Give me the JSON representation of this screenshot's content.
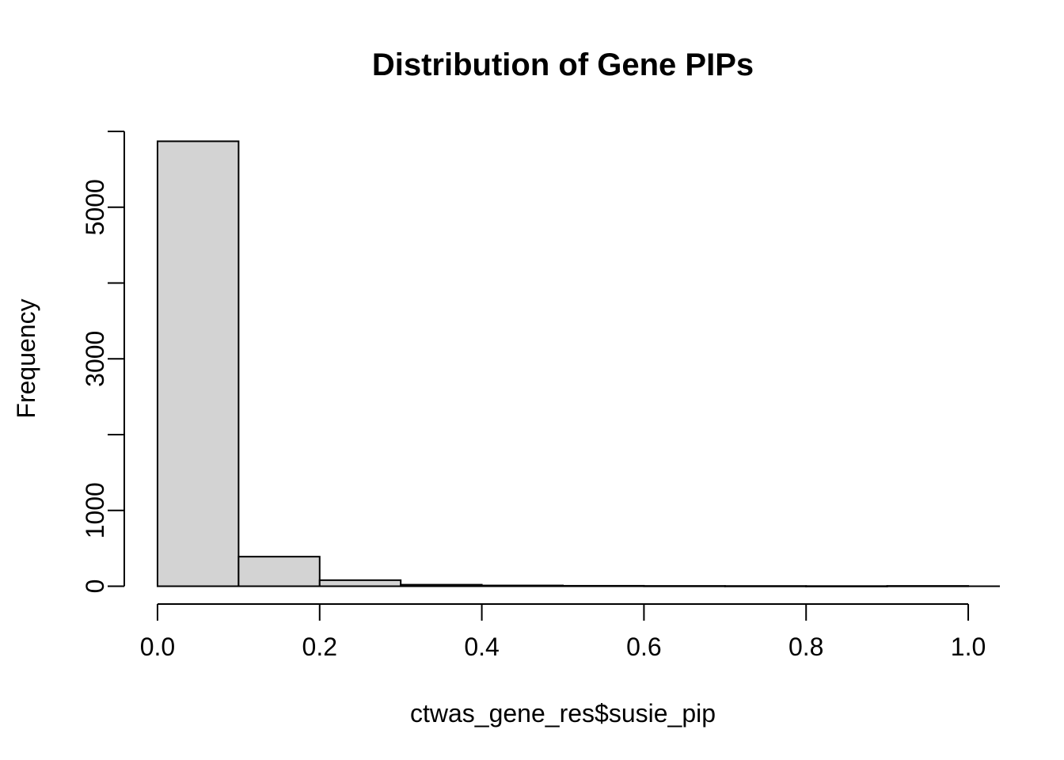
{
  "figure": {
    "title": "Distribution of Gene PIPs",
    "x_axis_label": "ctwas_gene_res$susie_pip",
    "y_axis_label": "Frequency"
  },
  "chart_data": {
    "type": "bar",
    "subtype": "histogram",
    "title": "Distribution of Gene PIPs",
    "xlabel": "ctwas_gene_res$susie_pip",
    "ylabel": "Frequency",
    "bin_width": 0.1,
    "bins": [
      {
        "range": [
          0.0,
          0.1
        ],
        "count": 5870
      },
      {
        "range": [
          0.1,
          0.2
        ],
        "count": 390
      },
      {
        "range": [
          0.2,
          0.3
        ],
        "count": 80
      },
      {
        "range": [
          0.3,
          0.4
        ],
        "count": 20
      },
      {
        "range": [
          0.4,
          0.5
        ],
        "count": 10
      },
      {
        "range": [
          0.5,
          0.6
        ],
        "count": 6
      },
      {
        "range": [
          0.6,
          0.7
        ],
        "count": 4
      },
      {
        "range": [
          0.7,
          0.8
        ],
        "count": 3
      },
      {
        "range": [
          0.8,
          0.9
        ],
        "count": 2
      },
      {
        "range": [
          0.9,
          1.0
        ],
        "count": 4
      }
    ],
    "x_ticks": [
      {
        "value": 0.0,
        "label": "0.0"
      },
      {
        "value": 0.2,
        "label": "0.2"
      },
      {
        "value": 0.4,
        "label": "0.4"
      },
      {
        "value": 0.6,
        "label": "0.6"
      },
      {
        "value": 0.8,
        "label": "0.8"
      },
      {
        "value": 1.0,
        "label": "1.0"
      }
    ],
    "y_ticks": [
      {
        "value": 0,
        "label": "0"
      },
      {
        "value": 1000,
        "label": "1000"
      },
      {
        "value": 2000,
        "label": ""
      },
      {
        "value": 3000,
        "label": "3000"
      },
      {
        "value": 4000,
        "label": ""
      },
      {
        "value": 5000,
        "label": "5000"
      },
      {
        "value": 6000,
        "label": ""
      }
    ],
    "xlim": [
      -0.04,
      1.04
    ],
    "ylim": [
      0,
      6000
    ],
    "grid": false,
    "legend": false,
    "colors": {
      "bar_fill": "#d3d3d3",
      "bar_stroke": "#000000",
      "axis": "#000000",
      "text": "#000000",
      "background": "#ffffff"
    }
  }
}
